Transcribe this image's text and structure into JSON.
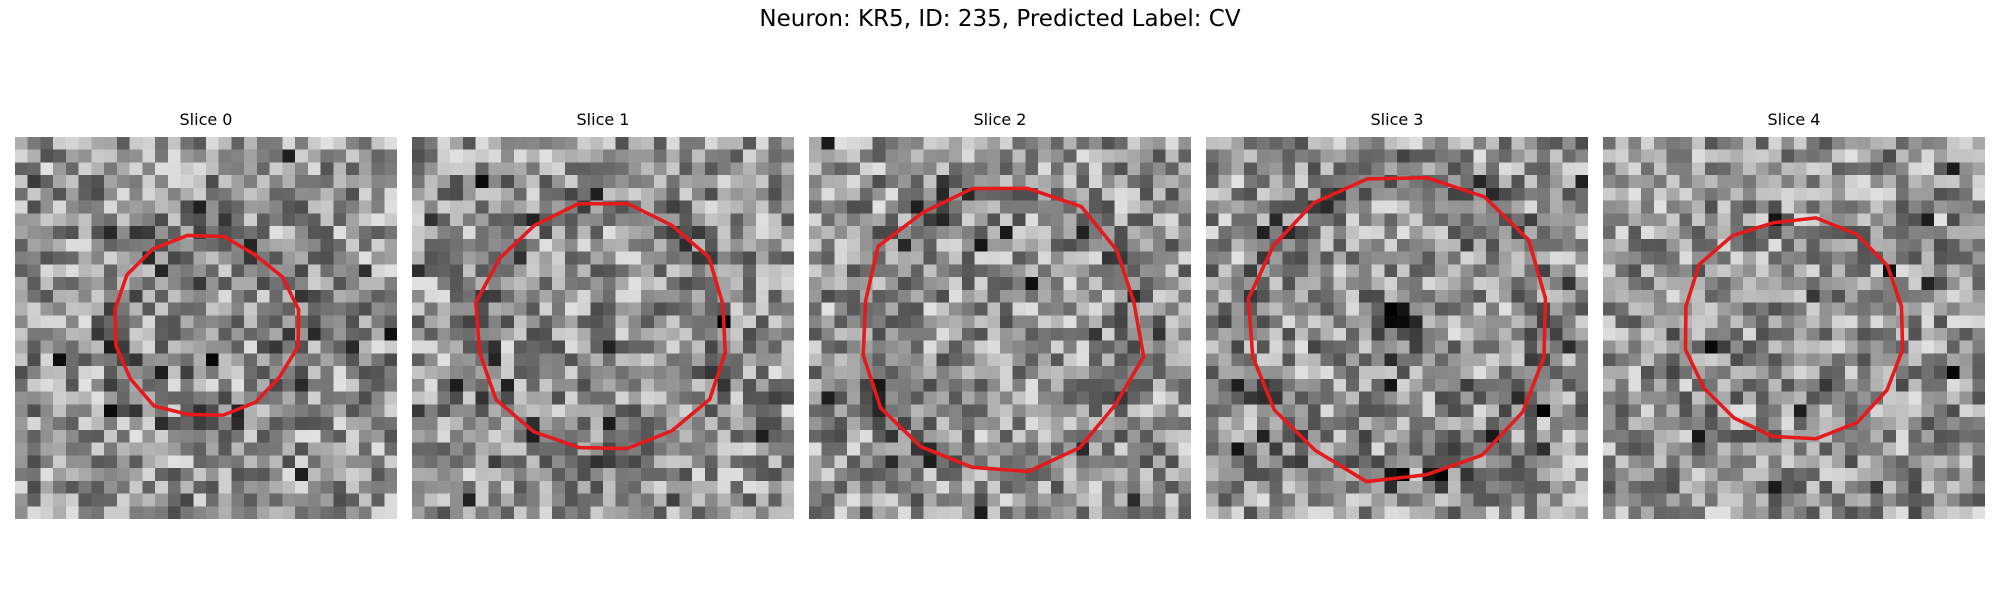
{
  "figure": {
    "title": "Neuron: KR5, ID: 235, Predicted Label: CV",
    "contour_color": "#e41a1c",
    "image_style": "grayscale pixelated EM crop, 30x30 pixels"
  },
  "panels": [
    {
      "title": "Slice 0",
      "seed": 11,
      "contour_radius": 0.24,
      "dark_ring": true
    },
    {
      "title": "Slice 1",
      "seed": 23,
      "contour_radius": 0.33,
      "dark_ring": true
    },
    {
      "title": "Slice 2",
      "seed": 37,
      "contour_radius": 0.37,
      "dark_ring": true
    },
    {
      "title": "Slice 3",
      "seed": 41,
      "contour_radius": 0.4,
      "dark_ring": true,
      "dark_center": true
    },
    {
      "title": "Slice 4",
      "seed": 53,
      "contour_radius": 0.29,
      "dark_ring": false
    }
  ]
}
